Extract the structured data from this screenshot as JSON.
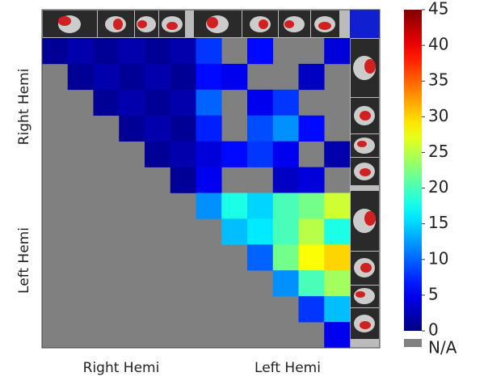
{
  "chart_data": {
    "type": "heatmap",
    "x_labels": [
      "Right Hemi",
      "Left Hemi"
    ],
    "y_labels": [
      "Right Hemi",
      "Left Hemi"
    ],
    "cmap": "jet",
    "clim": [
      0,
      45
    ],
    "cticks": [
      0,
      5,
      10,
      15,
      20,
      25,
      30,
      35,
      40,
      45
    ],
    "na_label": "N/A",
    "rows": [
      [
        1,
        2,
        1,
        2,
        1,
        2,
        8,
        null,
        6,
        null,
        null,
        4
      ],
      [
        null,
        1,
        2,
        1,
        2,
        1,
        6,
        5,
        null,
        null,
        3,
        null
      ],
      [
        null,
        null,
        1,
        2,
        1,
        2,
        10,
        null,
        5,
        8,
        null,
        null
      ],
      [
        null,
        null,
        null,
        1,
        2,
        1,
        7,
        null,
        9,
        12,
        6,
        null
      ],
      [
        null,
        null,
        null,
        null,
        1,
        2,
        4,
        6,
        8,
        5,
        null,
        2
      ],
      [
        null,
        null,
        null,
        null,
        null,
        1,
        5,
        null,
        null,
        3,
        4,
        null
      ],
      [
        null,
        null,
        null,
        null,
        null,
        null,
        12,
        18,
        15,
        20,
        22,
        26
      ],
      [
        null,
        null,
        null,
        null,
        null,
        null,
        null,
        14,
        16,
        20,
        25,
        18
      ],
      [
        null,
        null,
        null,
        null,
        null,
        null,
        null,
        null,
        10,
        22,
        28,
        30
      ],
      [
        null,
        null,
        null,
        null,
        null,
        null,
        null,
        null,
        null,
        12,
        20,
        24
      ],
      [
        null,
        null,
        null,
        null,
        null,
        null,
        null,
        null,
        null,
        null,
        8,
        14
      ],
      [
        null,
        null,
        null,
        null,
        null,
        null,
        null,
        null,
        null,
        null,
        null,
        5
      ]
    ]
  }
}
